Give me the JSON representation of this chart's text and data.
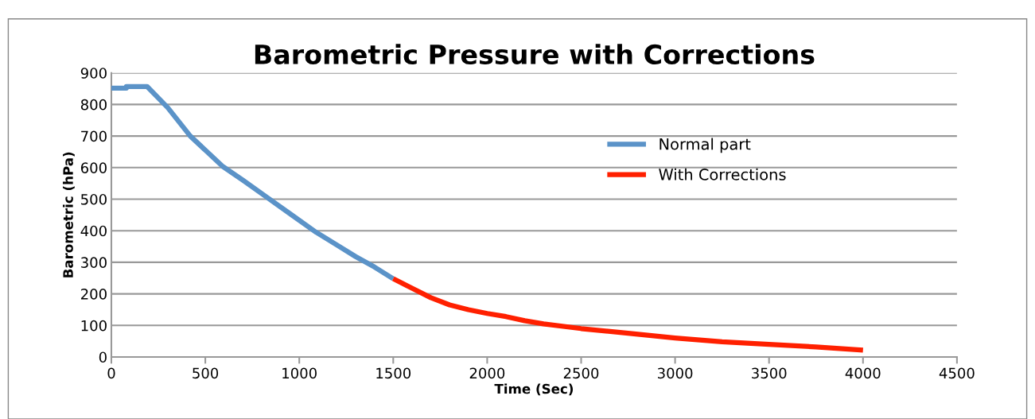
{
  "chart_data": {
    "type": "line",
    "title": "Barometric Pressure with Corrections",
    "xlabel": "Time (Sec)",
    "ylabel": "Barometric (hPa)",
    "series": [
      {
        "name": "Normal part",
        "color": "#5b93c8",
        "x": [
          0,
          80,
          80,
          190,
          300,
          420,
          590,
          700,
          830,
          960,
          1090,
          1200,
          1300,
          1400,
          1500
        ],
        "values": [
          852,
          852,
          857,
          857,
          790,
          700,
          605,
          560,
          505,
          450,
          395,
          355,
          318,
          285,
          248
        ]
      },
      {
        "name": "With Corrections",
        "color": "#ff2000",
        "x": [
          1500,
          1600,
          1700,
          1800,
          1900,
          2000,
          2100,
          2200,
          2300,
          2500,
          2750,
          3000,
          3250,
          3500,
          3750,
          4000
        ],
        "values": [
          248,
          218,
          188,
          165,
          150,
          138,
          128,
          115,
          105,
          90,
          75,
          60,
          48,
          40,
          32,
          22
        ]
      }
    ],
    "xlim": [
      0,
      4500
    ],
    "xticks": [
      0,
      500,
      1000,
      1500,
      2000,
      2500,
      3000,
      3500,
      4000,
      4500
    ],
    "ylim": [
      0,
      900
    ],
    "yticks": [
      0,
      100,
      200,
      300,
      400,
      500,
      600,
      700,
      800,
      900
    ],
    "grid": "y",
    "legend": "right",
    "marker": "none",
    "line_style": "solid"
  }
}
